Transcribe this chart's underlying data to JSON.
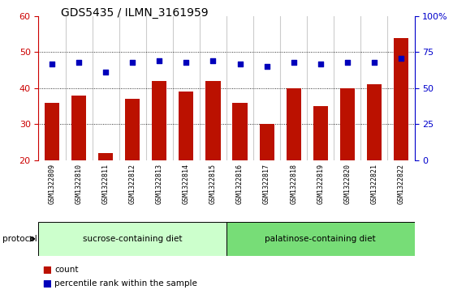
{
  "title": "GDS5435 / ILMN_3161959",
  "samples": [
    "GSM1322809",
    "GSM1322810",
    "GSM1322811",
    "GSM1322812",
    "GSM1322813",
    "GSM1322814",
    "GSM1322815",
    "GSM1322816",
    "GSM1322817",
    "GSM1322818",
    "GSM1322819",
    "GSM1322820",
    "GSM1322821",
    "GSM1322822"
  ],
  "counts": [
    36,
    38,
    22,
    37,
    42,
    39,
    42,
    36,
    30,
    40,
    35,
    40,
    41,
    54
  ],
  "percentile_ranks": [
    67,
    68,
    61,
    68,
    69,
    68,
    69,
    67,
    65,
    68,
    67,
    68,
    68,
    71
  ],
  "bar_color": "#BB1100",
  "dot_color": "#0000BB",
  "ylim_left": [
    20,
    60
  ],
  "ylim_right": [
    0,
    100
  ],
  "yticks_left": [
    20,
    30,
    40,
    50,
    60
  ],
  "yticks_right": [
    0,
    25,
    50,
    75,
    100
  ],
  "ytick_right_labels": [
    "0",
    "25",
    "50",
    "75",
    "100%"
  ],
  "grid_ticks": [
    30,
    40,
    50
  ],
  "group1_label": "sucrose-containing diet",
  "group2_label": "palatinose-containing diet",
  "group1_color": "#CCFFCC",
  "group2_color": "#77DD77",
  "protocol_label": "protocol",
  "legend_count_color": "#BB1100",
  "legend_dot_color": "#0000BB",
  "plot_bg_color": "#FFFFFF",
  "xticklabel_bg_color": "#CCCCCC",
  "title_fontsize": 10,
  "tick_fontsize": 8,
  "xtick_fontsize": 6,
  "axis_color_left": "#CC0000",
  "axis_color_right": "#0000CC"
}
